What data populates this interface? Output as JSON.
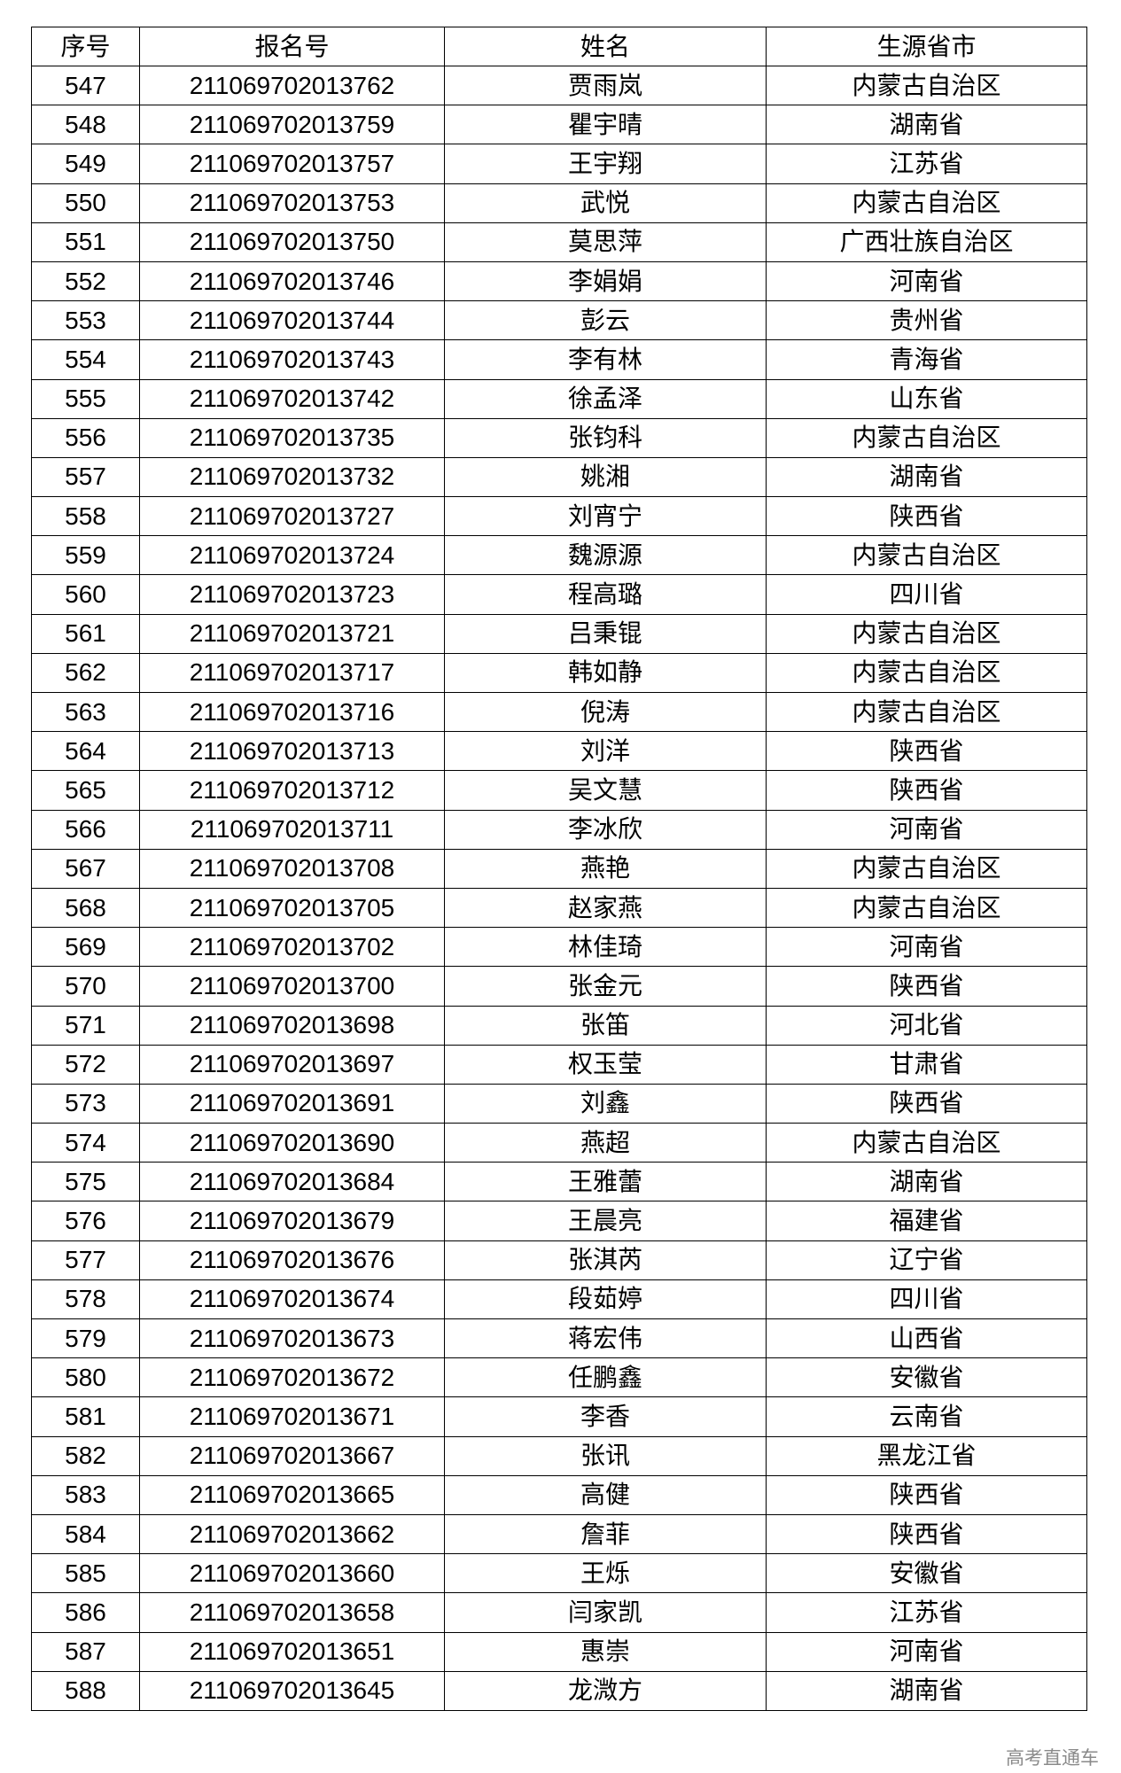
{
  "headers": [
    "序号",
    "报名号",
    "姓名",
    "生源省市"
  ],
  "rows": [
    [
      "547",
      "211069702013762",
      "贾雨岚",
      "内蒙古自治区"
    ],
    [
      "548",
      "211069702013759",
      "瞿宇晴",
      "湖南省"
    ],
    [
      "549",
      "211069702013757",
      "王宇翔",
      "江苏省"
    ],
    [
      "550",
      "211069702013753",
      "武悦",
      "内蒙古自治区"
    ],
    [
      "551",
      "211069702013750",
      "莫思萍",
      "广西壮族自治区"
    ],
    [
      "552",
      "211069702013746",
      "李娟娟",
      "河南省"
    ],
    [
      "553",
      "211069702013744",
      "彭云",
      "贵州省"
    ],
    [
      "554",
      "211069702013743",
      "李有林",
      "青海省"
    ],
    [
      "555",
      "211069702013742",
      "徐孟泽",
      "山东省"
    ],
    [
      "556",
      "211069702013735",
      "张钧科",
      "内蒙古自治区"
    ],
    [
      "557",
      "211069702013732",
      "姚湘",
      "湖南省"
    ],
    [
      "558",
      "211069702013727",
      "刘宵宁",
      "陕西省"
    ],
    [
      "559",
      "211069702013724",
      "魏源源",
      "内蒙古自治区"
    ],
    [
      "560",
      "211069702013723",
      "程高璐",
      "四川省"
    ],
    [
      "561",
      "211069702013721",
      "吕秉锟",
      "内蒙古自治区"
    ],
    [
      "562",
      "211069702013717",
      "韩如静",
      "内蒙古自治区"
    ],
    [
      "563",
      "211069702013716",
      "倪涛",
      "内蒙古自治区"
    ],
    [
      "564",
      "211069702013713",
      "刘洋",
      "陕西省"
    ],
    [
      "565",
      "211069702013712",
      "吴文慧",
      "陕西省"
    ],
    [
      "566",
      "211069702013711",
      "李冰欣",
      "河南省"
    ],
    [
      "567",
      "211069702013708",
      "燕艳",
      "内蒙古自治区"
    ],
    [
      "568",
      "211069702013705",
      "赵家燕",
      "内蒙古自治区"
    ],
    [
      "569",
      "211069702013702",
      "林佳琦",
      "河南省"
    ],
    [
      "570",
      "211069702013700",
      "张金元",
      "陕西省"
    ],
    [
      "571",
      "211069702013698",
      "张笛",
      "河北省"
    ],
    [
      "572",
      "211069702013697",
      "权玉莹",
      "甘肃省"
    ],
    [
      "573",
      "211069702013691",
      "刘鑫",
      "陕西省"
    ],
    [
      "574",
      "211069702013690",
      "燕超",
      "内蒙古自治区"
    ],
    [
      "575",
      "211069702013684",
      "王雅蕾",
      "湖南省"
    ],
    [
      "576",
      "211069702013679",
      "王晨亮",
      "福建省"
    ],
    [
      "577",
      "211069702013676",
      "张淇芮",
      "辽宁省"
    ],
    [
      "578",
      "211069702013674",
      "段茹婷",
      "四川省"
    ],
    [
      "579",
      "211069702013673",
      "蒋宏伟",
      "山西省"
    ],
    [
      "580",
      "211069702013672",
      "任鹏鑫",
      "安徽省"
    ],
    [
      "581",
      "211069702013671",
      "李香",
      "云南省"
    ],
    [
      "582",
      "211069702013667",
      "张讯",
      "黑龙江省"
    ],
    [
      "583",
      "211069702013665",
      "高健",
      "陕西省"
    ],
    [
      "584",
      "211069702013662",
      "詹菲",
      "陕西省"
    ],
    [
      "585",
      "211069702013660",
      "王烁",
      "安徽省"
    ],
    [
      "586",
      "211069702013658",
      "闫家凯",
      "江苏省"
    ],
    [
      "587",
      "211069702013651",
      "惠崇",
      "河南省"
    ],
    [
      "588",
      "211069702013645",
      "龙溦方",
      "湖南省"
    ]
  ],
  "watermark": "高考直通车"
}
